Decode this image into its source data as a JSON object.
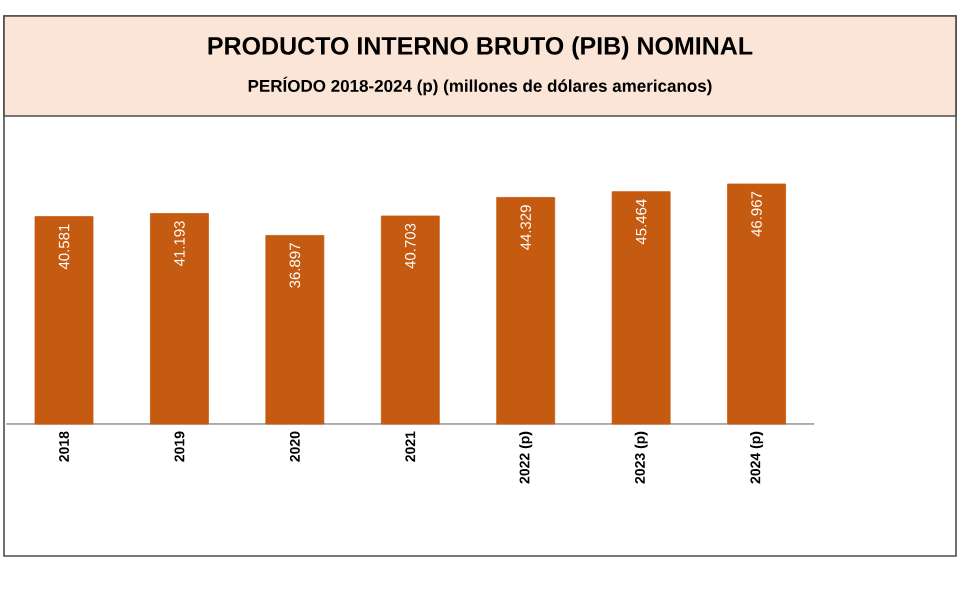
{
  "chart_data": {
    "type": "bar",
    "title": "PRODUCTO INTERNO BRUTO (PIB) NOMINAL",
    "subtitle": "PERÍODO 2018-2024 (p) (millones de dólares americanos)",
    "categories": [
      "2018",
      "2019",
      "2020",
      "2021",
      "2022 (p)",
      "2023 (p)",
      "2024 (p)"
    ],
    "values": [
      40581,
      41193,
      36897,
      40703,
      44329,
      45464,
      46967
    ],
    "value_labels": [
      "40.581",
      "41.193",
      "36.897",
      "40.703",
      "44.329",
      "45.464",
      "46.967"
    ],
    "color": "#c55a11"
  }
}
